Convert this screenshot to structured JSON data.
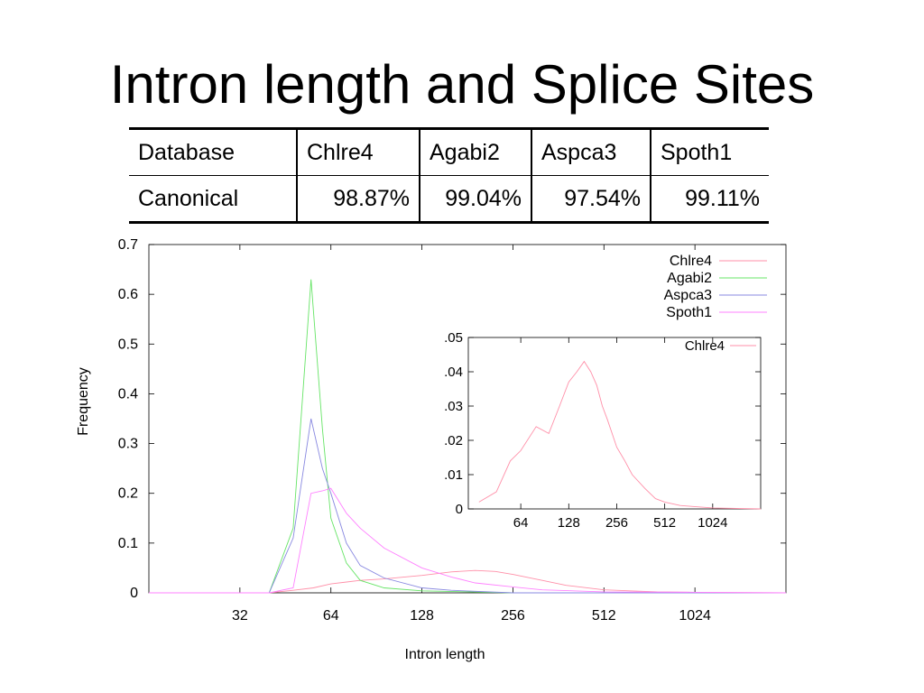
{
  "slide": {
    "title": "Intron length and Splice Sites"
  },
  "table": {
    "headers": [
      "Database",
      "Chlre4",
      "Agabi2",
      "Aspca3",
      "Spoth1"
    ],
    "rows": [
      [
        "Canonical",
        "98.87%",
        "99.04%",
        "97.54%",
        "99.11%"
      ]
    ]
  },
  "colors": {
    "Chlre4": "#ff8fa8",
    "Agabi2": "#66e466",
    "Aspca3": "#8888e0",
    "Spoth1": "#ff80ff"
  },
  "chart_data": [
    {
      "type": "line",
      "xlabel": "Intron length",
      "ylabel": "Frequency",
      "xscale": "log2",
      "xlim": [
        16,
        2048
      ],
      "ylim": [
        0,
        0.7
      ],
      "xticks": [
        32,
        64,
        128,
        256,
        512,
        1024
      ],
      "yticks": [
        0,
        0.1,
        0.2,
        0.3,
        0.4,
        0.5,
        0.6,
        0.7
      ],
      "ytick_labels": [
        "0",
        "0.1",
        "0.2",
        "0.3",
        "0.4",
        "0.5",
        "0.6",
        "0.7"
      ],
      "legend_position": "top-right",
      "series": [
        {
          "name": "Chlre4",
          "x": [
            16,
            40,
            48,
            56,
            64,
            80,
            96,
            128,
            160,
            192,
            224,
            256,
            320,
            384,
            512,
            768,
            1024,
            2048
          ],
          "y": [
            0,
            0,
            0.005,
            0.01,
            0.018,
            0.025,
            0.028,
            0.035,
            0.042,
            0.045,
            0.043,
            0.037,
            0.025,
            0.015,
            0.006,
            0.002,
            0.001,
            0
          ]
        },
        {
          "name": "Agabi2",
          "x": [
            16,
            40,
            48,
            55,
            60,
            64,
            72,
            80,
            96,
            128,
            256,
            2048
          ],
          "y": [
            0,
            0,
            0.13,
            0.63,
            0.33,
            0.15,
            0.06,
            0.025,
            0.01,
            0.004,
            0,
            0
          ]
        },
        {
          "name": "Aspca3",
          "x": [
            16,
            40,
            48,
            55,
            60,
            64,
            72,
            80,
            96,
            128,
            160,
            256,
            2048
          ],
          "y": [
            0,
            0,
            0.11,
            0.35,
            0.25,
            0.2,
            0.1,
            0.055,
            0.03,
            0.01,
            0.005,
            0,
            0
          ]
        },
        {
          "name": "Spoth1",
          "x": [
            16,
            40,
            48,
            55,
            60,
            64,
            72,
            80,
            96,
            128,
            160,
            192,
            256,
            320,
            512,
            1024,
            2048
          ],
          "y": [
            0,
            0,
            0.01,
            0.2,
            0.205,
            0.21,
            0.16,
            0.13,
            0.09,
            0.05,
            0.032,
            0.02,
            0.012,
            0.006,
            0.002,
            0.001,
            0
          ]
        }
      ]
    },
    {
      "type": "line",
      "inset": true,
      "xscale": "log2",
      "xlim": [
        30,
        2048
      ],
      "ylim": [
        0,
        0.05
      ],
      "xticks": [
        64,
        128,
        256,
        512,
        1024
      ],
      "yticks": [
        0,
        0.01,
        0.02,
        0.03,
        0.04,
        0.05
      ],
      "ytick_labels": [
        "0",
        ".01",
        ".02",
        ".03",
        ".04",
        ".05"
      ],
      "legend_position": "top-right",
      "series": [
        {
          "name": "Chlre4",
          "x": [
            35,
            45,
            55,
            64,
            80,
            96,
            112,
            128,
            144,
            160,
            176,
            192,
            208,
            224,
            256,
            288,
            320,
            384,
            448,
            512,
            640,
            768,
            1024,
            2048
          ],
          "y": [
            0.002,
            0.005,
            0.014,
            0.017,
            0.024,
            0.022,
            0.03,
            0.037,
            0.04,
            0.043,
            0.04,
            0.036,
            0.03,
            0.026,
            0.018,
            0.014,
            0.01,
            0.006,
            0.003,
            0.002,
            0.001,
            0.0007,
            0.0003,
            0
          ]
        }
      ]
    }
  ]
}
